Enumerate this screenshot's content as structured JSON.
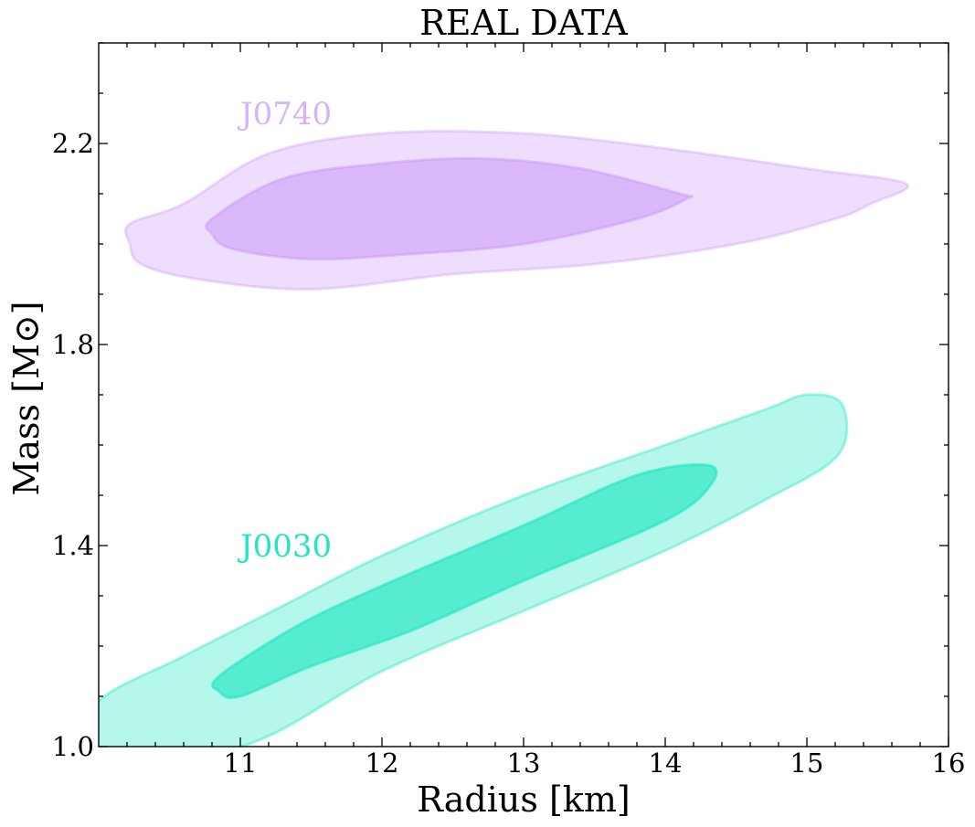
{
  "chart_data": {
    "type": "contour",
    "title": "REAL DATA",
    "xlabel": "Radius [km]",
    "ylabel": "Mass [M⊙]",
    "xlim": [
      10.0,
      16.0
    ],
    "ylim": [
      1.0,
      2.4
    ],
    "x_ticks": [
      11,
      12,
      13,
      14,
      15,
      16
    ],
    "x_tick_labels": [
      "11",
      "12",
      "13",
      "14",
      "15",
      "16"
    ],
    "y_ticks": [
      1.0,
      1.4,
      1.8,
      2.2
    ],
    "y_tick_labels": [
      "1.0",
      "1.4",
      "1.8",
      "2.2"
    ],
    "x_minor_step": 0.2,
    "y_minor_step": 0.1,
    "grid": false,
    "series": [
      {
        "name": "J0740",
        "label_at": [
          11.0,
          2.26
        ],
        "color": "#cc99f7",
        "regions": [
          {
            "level": "outer",
            "fill_opacity": 0.33,
            "stroke_opacity": 0.35,
            "points": [
              [
                10.22,
                2.04
              ],
              [
                10.6,
                2.08
              ],
              [
                11.2,
                2.18
              ],
              [
                12.0,
                2.22
              ],
              [
                13.0,
                2.22
              ],
              [
                14.0,
                2.19
              ],
              [
                15.0,
                2.15
              ],
              [
                15.7,
                2.12
              ],
              [
                15.45,
                2.08
              ],
              [
                15.2,
                2.05
              ],
              [
                14.5,
                2.0
              ],
              [
                13.5,
                1.96
              ],
              [
                12.5,
                1.94
              ],
              [
                11.5,
                1.91
              ],
              [
                10.7,
                1.93
              ],
              [
                10.3,
                1.96
              ],
              [
                10.22,
                2.0
              ]
            ]
          },
          {
            "level": "inner",
            "fill_opacity": 0.55,
            "stroke_opacity": 0.5,
            "points": [
              [
                10.8,
                2.05
              ],
              [
                11.3,
                2.13
              ],
              [
                12.0,
                2.16
              ],
              [
                12.7,
                2.17
              ],
              [
                13.4,
                2.15
              ],
              [
                14.1,
                2.1
              ],
              [
                14.15,
                2.09
              ],
              [
                13.8,
                2.05
              ],
              [
                13.0,
                2.0
              ],
              [
                12.2,
                1.98
              ],
              [
                11.5,
                1.97
              ],
              [
                10.95,
                1.99
              ],
              [
                10.8,
                2.02
              ]
            ]
          }
        ]
      },
      {
        "name": "J0030",
        "label_at": [
          11.0,
          1.4
        ],
        "color": "#22e6c3",
        "regions": [
          {
            "level": "outer",
            "fill_opacity": 0.33,
            "stroke_opacity": 0.4,
            "points": [
              [
                10.0,
                1.09
              ],
              [
                10.6,
                1.18
              ],
              [
                11.3,
                1.28
              ],
              [
                12.0,
                1.38
              ],
              [
                13.0,
                1.5
              ],
              [
                14.0,
                1.6
              ],
              [
                14.7,
                1.67
              ],
              [
                15.0,
                1.7
              ],
              [
                15.25,
                1.68
              ],
              [
                15.22,
                1.58
              ],
              [
                14.7,
                1.49
              ],
              [
                14.0,
                1.39
              ],
              [
                13.0,
                1.27
              ],
              [
                12.0,
                1.15
              ],
              [
                11.0,
                1.0
              ],
              [
                10.0,
                1.0
              ]
            ]
          },
          {
            "level": "inner",
            "fill_opacity": 0.65,
            "stroke_opacity": 0.6,
            "points": [
              [
                10.85,
                1.14
              ],
              [
                11.4,
                1.24
              ],
              [
                12.0,
                1.32
              ],
              [
                13.0,
                1.44
              ],
              [
                13.8,
                1.54
              ],
              [
                14.3,
                1.56
              ],
              [
                14.32,
                1.52
              ],
              [
                14.0,
                1.45
              ],
              [
                13.0,
                1.33
              ],
              [
                12.2,
                1.23
              ],
              [
                11.5,
                1.16
              ],
              [
                11.0,
                1.1
              ],
              [
                10.85,
                1.11
              ]
            ]
          }
        ]
      }
    ]
  }
}
